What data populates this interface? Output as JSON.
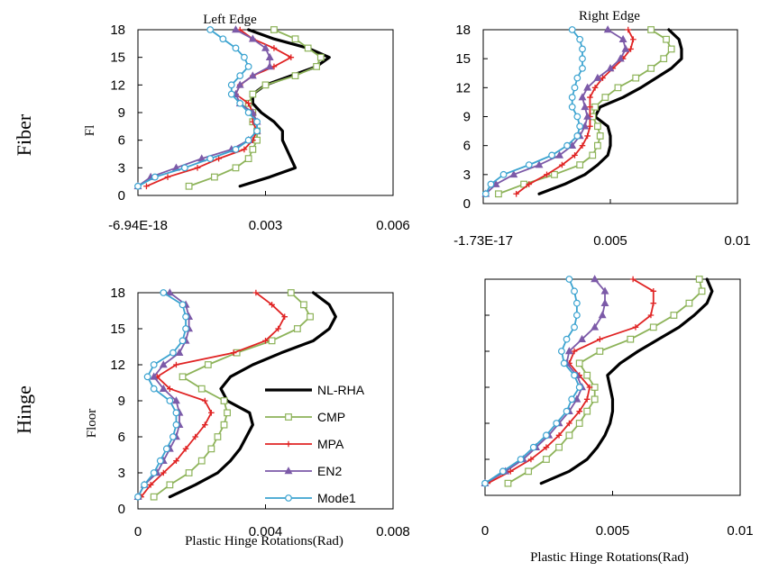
{
  "row_labels": [
    "Fiber",
    "Hinge"
  ],
  "colors": {
    "NL-RHA": "#000000",
    "CMP": "#8db359",
    "MPA": "#e02424",
    "EN2": "#7c5aa8",
    "Mode1": "#3ba3d0"
  },
  "legend": [
    "NL-RHA",
    "CMP",
    "MPA",
    "EN2",
    "Mode1"
  ],
  "chart_data": [
    {
      "type": "line",
      "title": "Left Edge",
      "ylabel": "Fl",
      "xlabel": "",
      "xlim": [
        0,
        0.006
      ],
      "ylim": [
        0,
        18
      ],
      "xticks": [
        0,
        0.003,
        0.006
      ],
      "xtick_labels": [
        "-6.94E-18",
        "0.003",
        "0.006"
      ],
      "yticks": [
        0,
        3,
        6,
        9,
        12,
        15,
        18
      ],
      "y": [
        1,
        2,
        3,
        4,
        5,
        6,
        7,
        8,
        9,
        10,
        11,
        12,
        13,
        14,
        15,
        16,
        17,
        18
      ],
      "series": [
        {
          "name": "NL-RHA",
          "values": [
            0.0024,
            0.0031,
            0.0037,
            0.0036,
            0.0035,
            0.0034,
            0.0034,
            0.0032,
            0.0029,
            0.0027,
            0.0027,
            0.003,
            0.0036,
            0.0042,
            0.0045,
            0.004,
            0.0032,
            0.0026
          ],
          "markers": false
        },
        {
          "name": "CMP",
          "values": [
            0.0012,
            0.0018,
            0.0023,
            0.0026,
            0.0027,
            0.0028,
            0.0028,
            0.0027,
            0.0027,
            0.0026,
            0.0027,
            0.003,
            0.0037,
            0.0042,
            0.0043,
            0.004,
            0.0037,
            0.0032
          ],
          "markers": true
        },
        {
          "name": "MPA",
          "values": [
            0.0002,
            0.0007,
            0.0014,
            0.0019,
            0.0025,
            0.0027,
            0.0028,
            0.0027,
            0.0027,
            0.0026,
            0.0023,
            0.0024,
            0.0027,
            0.0032,
            0.0036,
            0.0032,
            0.0027,
            0.0024
          ],
          "markers": true
        },
        {
          "name": "EN2",
          "values": [
            0.0,
            0.0003,
            0.0009,
            0.0015,
            0.0022,
            0.0026,
            0.0028,
            0.0028,
            0.0027,
            0.0024,
            0.0023,
            0.0024,
            0.0027,
            0.0031,
            0.0031,
            0.003,
            0.0027,
            0.0023
          ],
          "markers": true
        },
        {
          "name": "Mode1",
          "values": [
            0.0,
            0.0004,
            0.0011,
            0.0017,
            0.0023,
            0.0026,
            0.0028,
            0.0028,
            0.0026,
            0.0024,
            0.0022,
            0.0022,
            0.0024,
            0.0026,
            0.0025,
            0.0023,
            0.002,
            0.0017
          ],
          "markers": true
        }
      ]
    },
    {
      "type": "line",
      "title": "Right Edge",
      "ylabel": "",
      "xlabel": "",
      "xlim": [
        0,
        0.01
      ],
      "ylim": [
        0,
        18
      ],
      "xticks": [
        0,
        0.005,
        0.01
      ],
      "xtick_labels": [
        "-1.73E-17",
        "0.005",
        "0.01"
      ],
      "yticks": [
        0,
        3,
        6,
        9,
        12,
        15,
        18
      ],
      "y": [
        1,
        2,
        3,
        4,
        5,
        6,
        7,
        8,
        9,
        10,
        11,
        12,
        13,
        14,
        15,
        16,
        17,
        18
      ],
      "series": [
        {
          "name": "NL-RHA",
          "values": [
            0.0022,
            0.0032,
            0.004,
            0.0045,
            0.0049,
            0.005,
            0.005,
            0.0049,
            0.0044,
            0.0046,
            0.0055,
            0.0062,
            0.0068,
            0.0074,
            0.0078,
            0.0078,
            0.0077,
            0.0073
          ],
          "markers": false
        },
        {
          "name": "CMP",
          "values": [
            0.0006,
            0.0016,
            0.0028,
            0.0038,
            0.0043,
            0.0045,
            0.0046,
            0.0045,
            0.0043,
            0.0044,
            0.0048,
            0.0053,
            0.006,
            0.0066,
            0.0071,
            0.0074,
            0.0072,
            0.0066
          ],
          "markers": true
        },
        {
          "name": "MPA",
          "values": [
            0.0013,
            0.0018,
            0.0025,
            0.0031,
            0.0036,
            0.0039,
            0.0041,
            0.0042,
            0.0042,
            0.0042,
            0.0042,
            0.0044,
            0.0047,
            0.0051,
            0.0055,
            0.0058,
            0.0059,
            0.0057
          ],
          "markers": true
        },
        {
          "name": "EN2",
          "values": [
            0.0001,
            0.0005,
            0.0012,
            0.0022,
            0.003,
            0.0035,
            0.0038,
            0.004,
            0.0041,
            0.004,
            0.0039,
            0.0041,
            0.0045,
            0.005,
            0.0054,
            0.0056,
            0.0055,
            0.0049
          ],
          "markers": true
        },
        {
          "name": "Mode1",
          "values": [
            0.0001,
            0.0003,
            0.0008,
            0.0018,
            0.0027,
            0.0033,
            0.0037,
            0.0038,
            0.0037,
            0.0035,
            0.0035,
            0.0036,
            0.0037,
            0.0039,
            0.0039,
            0.0039,
            0.0038,
            0.0035
          ],
          "markers": true
        }
      ]
    },
    {
      "type": "line",
      "title": "",
      "ylabel": "Floor",
      "xlabel": "Plastic Hinge   Rotations(Rad)",
      "xlim": [
        0,
        0.008
      ],
      "ylim": [
        0,
        18
      ],
      "xticks": [
        0,
        0.004,
        0.008
      ],
      "xtick_labels": [
        "0",
        "0.004",
        "0.008"
      ],
      "yticks": [
        0,
        3,
        6,
        9,
        12,
        15,
        18
      ],
      "y": [
        1,
        2,
        3,
        4,
        5,
        6,
        7,
        8,
        9,
        10,
        11,
        12,
        13,
        14,
        15,
        16,
        17,
        18
      ],
      "legend_position": "center-right",
      "series": [
        {
          "name": "NL-RHA",
          "values": [
            0.001,
            0.0018,
            0.0025,
            0.0029,
            0.0032,
            0.0034,
            0.0036,
            0.0035,
            0.0028,
            0.0026,
            0.0029,
            0.0036,
            0.0045,
            0.0055,
            0.006,
            0.0062,
            0.006,
            0.0055
          ],
          "markers": false
        },
        {
          "name": "CMP",
          "values": [
            0.0005,
            0.001,
            0.0016,
            0.002,
            0.0023,
            0.0025,
            0.0027,
            0.0028,
            0.0027,
            0.002,
            0.0014,
            0.0022,
            0.0031,
            0.0042,
            0.005,
            0.0054,
            0.0052,
            0.0048
          ],
          "markers": true
        },
        {
          "name": "MPA",
          "values": [
            0.0001,
            0.0004,
            0.0008,
            0.0012,
            0.0015,
            0.0018,
            0.0021,
            0.0023,
            0.0021,
            0.001,
            0.0006,
            0.0012,
            0.003,
            0.004,
            0.0044,
            0.0046,
            0.0042,
            0.0037
          ],
          "markers": true
        },
        {
          "name": "EN2",
          "values": [
            0.0,
            0.0002,
            0.0006,
            0.0008,
            0.001,
            0.0012,
            0.0013,
            0.0013,
            0.0012,
            0.0008,
            0.0005,
            0.0008,
            0.0013,
            0.0015,
            0.0016,
            0.0016,
            0.0015,
            0.001
          ],
          "markers": true
        },
        {
          "name": "Mode1",
          "values": [
            0.0,
            0.0002,
            0.0005,
            0.0007,
            0.0009,
            0.0011,
            0.0012,
            0.0012,
            0.001,
            0.0005,
            0.0003,
            0.0005,
            0.0011,
            0.0014,
            0.0015,
            0.0015,
            0.0014,
            0.0008
          ],
          "markers": true
        }
      ]
    },
    {
      "type": "line",
      "title": "",
      "ylabel": "",
      "xlabel": "Plastic Hinge   Rotations(Rad)",
      "xlim": [
        0,
        0.01
      ],
      "ylim": [
        0,
        18
      ],
      "xticks": [
        0,
        0.005,
        0.01
      ],
      "xtick_labels": [
        "0",
        "0.005",
        "0.01"
      ],
      "yticks": [
        0,
        3,
        6,
        9,
        12,
        15,
        18
      ],
      "ytick_labels_visible": false,
      "y": [
        1,
        2,
        3,
        4,
        5,
        6,
        7,
        8,
        9,
        10,
        11,
        12,
        13,
        14,
        15,
        16,
        17,
        18
      ],
      "series": [
        {
          "name": "NL-RHA",
          "values": [
            0.0022,
            0.0033,
            0.004,
            0.0044,
            0.0047,
            0.0049,
            0.005,
            0.005,
            0.0049,
            0.0048,
            0.0053,
            0.006,
            0.0068,
            0.0076,
            0.0082,
            0.0087,
            0.0089,
            0.0087
          ],
          "markers": false
        },
        {
          "name": "CMP",
          "values": [
            0.0009,
            0.0017,
            0.0024,
            0.0029,
            0.0033,
            0.0037,
            0.004,
            0.0043,
            0.0043,
            0.004,
            0.0037,
            0.0045,
            0.0057,
            0.0066,
            0.0074,
            0.008,
            0.0085,
            0.0084
          ],
          "markers": true
        },
        {
          "name": "MPA",
          "values": [
            0.0001,
            0.001,
            0.0018,
            0.0024,
            0.0029,
            0.0033,
            0.0037,
            0.004,
            0.0041,
            0.0037,
            0.0033,
            0.0035,
            0.0045,
            0.0059,
            0.0065,
            0.0066,
            0.0066,
            0.0058
          ],
          "markers": true
        },
        {
          "name": "EN2",
          "values": [
            0.0,
            0.0008,
            0.0015,
            0.002,
            0.0025,
            0.0029,
            0.0033,
            0.0036,
            0.0038,
            0.0036,
            0.0032,
            0.0033,
            0.0038,
            0.0043,
            0.0046,
            0.0047,
            0.0047,
            0.0043
          ],
          "markers": true
        },
        {
          "name": "Mode1",
          "values": [
            0.0,
            0.0007,
            0.0014,
            0.0019,
            0.0024,
            0.0028,
            0.0032,
            0.0034,
            0.0037,
            0.0035,
            0.0031,
            0.003,
            0.0032,
            0.0035,
            0.0036,
            0.0036,
            0.0035,
            0.0033
          ],
          "markers": true
        }
      ]
    }
  ]
}
